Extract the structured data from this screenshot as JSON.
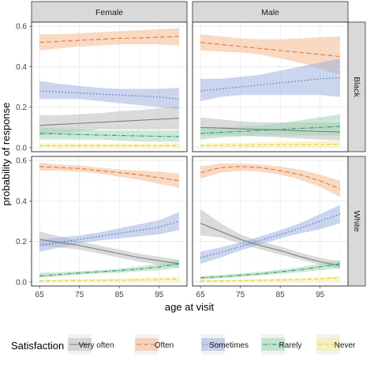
{
  "chart_data": {
    "type": "line",
    "xlabel": "age at visit",
    "ylabel": "probability of response",
    "xlim": [
      63,
      102
    ],
    "ylim": [
      -0.02,
      0.62
    ],
    "x_ticks": [
      65,
      75,
      85,
      95
    ],
    "y_ticks": [
      0.0,
      0.2,
      0.4,
      0.6
    ],
    "y_tick_labels": [
      "0.0",
      "0.2",
      "0.4",
      "0.6"
    ],
    "facet_columns": [
      "Female",
      "Male"
    ],
    "facet_rows": [
      "Black",
      "White"
    ],
    "legend": {
      "title": "Satisfaction",
      "position": "bottom",
      "entries": [
        "Very often",
        "Often",
        "Sometimes",
        "Rarely",
        "Never"
      ]
    },
    "series_style": {
      "Very often": {
        "color": "#7f7f7f",
        "fill": "#bdbdbd",
        "dash": ""
      },
      "Often": {
        "color": "#e2773f",
        "fill": "#f4b98f",
        "dash": "6,3"
      },
      "Sometimes": {
        "color": "#4a6fbf",
        "fill": "#9fb3e0",
        "dash": "1.5,2.5"
      },
      "Rarely": {
        "color": "#2e9a6a",
        "fill": "#9fd6b5",
        "dash": "6,2,1.5,2"
      },
      "Never": {
        "color": "#e8cf2e",
        "fill": "#f5ec9c",
        "dash": "5,3"
      }
    },
    "grid": true,
    "x": [
      65,
      70,
      75,
      80,
      85,
      90,
      95,
      100
    ],
    "panels": [
      {
        "col": "Female",
        "row": "Black",
        "series": [
          {
            "name": "Very often",
            "values": [
              0.11,
              0.115,
              0.12,
              0.125,
              0.13,
              0.135,
              0.14,
              0.145
            ],
            "lower": [
              0.06,
              0.07,
              0.08,
              0.09,
              0.09,
              0.09,
              0.09,
              0.09
            ],
            "upper": [
              0.16,
              0.16,
              0.165,
              0.17,
              0.18,
              0.185,
              0.195,
              0.205
            ]
          },
          {
            "name": "Often",
            "values": [
              0.52,
              0.525,
              0.53,
              0.535,
              0.54,
              0.542,
              0.545,
              0.55
            ],
            "lower": [
              0.48,
              0.49,
              0.5,
              0.505,
              0.51,
              0.51,
              0.51,
              0.505
            ],
            "upper": [
              0.56,
              0.56,
              0.565,
              0.57,
              0.575,
              0.58,
              0.585,
              0.59
            ]
          },
          {
            "name": "Sometimes",
            "values": [
              0.28,
              0.275,
              0.27,
              0.265,
              0.26,
              0.255,
              0.25,
              0.24
            ],
            "lower": [
              0.24,
              0.24,
              0.24,
              0.23,
              0.22,
              0.21,
              0.2,
              0.19
            ],
            "upper": [
              0.33,
              0.315,
              0.305,
              0.295,
              0.29,
              0.29,
              0.29,
              0.295
            ]
          },
          {
            "name": "Rarely",
            "values": [
              0.07,
              0.068,
              0.065,
              0.062,
              0.06,
              0.058,
              0.056,
              0.055
            ],
            "lower": [
              0.04,
              0.04,
              0.04,
              0.04,
              0.035,
              0.03,
              0.03,
              0.03
            ],
            "upper": [
              0.1,
              0.095,
              0.09,
              0.085,
              0.085,
              0.085,
              0.085,
              0.085
            ]
          },
          {
            "name": "Never",
            "values": [
              0.01,
              0.01,
              0.01,
              0.01,
              0.01,
              0.01,
              0.01,
              0.01
            ],
            "lower": [
              0.0,
              0.0,
              0.0,
              0.0,
              0.0,
              0.0,
              0.0,
              0.0
            ],
            "upper": [
              0.02,
              0.02,
              0.02,
              0.02,
              0.02,
              0.02,
              0.02,
              0.025
            ]
          }
        ]
      },
      {
        "col": "Male",
        "row": "Black",
        "series": [
          {
            "name": "Very often",
            "values": [
              0.1,
              0.097,
              0.093,
              0.09,
              0.087,
              0.083,
              0.08,
              0.078
            ],
            "lower": [
              0.06,
              0.06,
              0.06,
              0.055,
              0.05,
              0.045,
              0.04,
              0.035
            ],
            "upper": [
              0.15,
              0.14,
              0.13,
              0.125,
              0.125,
              0.125,
              0.125,
              0.125
            ]
          },
          {
            "name": "Often",
            "values": [
              0.52,
              0.51,
              0.5,
              0.49,
              0.48,
              0.47,
              0.46,
              0.45
            ],
            "lower": [
              0.48,
              0.475,
              0.47,
              0.46,
              0.44,
              0.42,
              0.39,
              0.36
            ],
            "upper": [
              0.56,
              0.55,
              0.54,
              0.535,
              0.535,
              0.54,
              0.545,
              0.55
            ]
          },
          {
            "name": "Sometimes",
            "values": [
              0.28,
              0.29,
              0.3,
              0.31,
              0.32,
              0.33,
              0.34,
              0.345
            ],
            "lower": [
              0.23,
              0.25,
              0.26,
              0.26,
              0.26,
              0.26,
              0.26,
              0.25
            ],
            "upper": [
              0.34,
              0.34,
              0.35,
              0.36,
              0.38,
              0.4,
              0.42,
              0.44
            ]
          },
          {
            "name": "Rarely",
            "values": [
              0.07,
              0.075,
              0.08,
              0.085,
              0.09,
              0.095,
              0.1,
              0.105
            ],
            "lower": [
              0.04,
              0.05,
              0.055,
              0.06,
              0.06,
              0.06,
              0.06,
              0.06
            ],
            "upper": [
              0.1,
              0.1,
              0.105,
              0.11,
              0.12,
              0.135,
              0.15,
              0.165
            ]
          },
          {
            "name": "Never",
            "values": [
              0.01,
              0.011,
              0.012,
              0.013,
              0.014,
              0.015,
              0.016,
              0.017
            ],
            "lower": [
              0.0,
              0.0,
              0.0,
              0.0,
              0.0,
              0.0,
              0.0,
              0.0
            ],
            "upper": [
              0.02,
              0.022,
              0.024,
              0.026,
              0.028,
              0.03,
              0.033,
              0.036
            ]
          }
        ]
      },
      {
        "col": "Female",
        "row": "White",
        "series": [
          {
            "name": "Very often",
            "values": [
              0.21,
              0.195,
              0.18,
              0.16,
              0.14,
              0.12,
              0.105,
              0.09
            ],
            "lower": [
              0.18,
              0.17,
              0.16,
              0.14,
              0.12,
              0.1,
              0.085,
              0.07
            ],
            "upper": [
              0.25,
              0.225,
              0.2,
              0.18,
              0.16,
              0.14,
              0.125,
              0.11
            ]
          },
          {
            "name": "Often",
            "values": [
              0.57,
              0.565,
              0.56,
              0.55,
              0.54,
              0.53,
              0.515,
              0.5
            ],
            "lower": [
              0.55,
              0.55,
              0.545,
              0.535,
              0.52,
              0.505,
              0.485,
              0.465
            ],
            "upper": [
              0.59,
              0.58,
              0.575,
              0.565,
              0.555,
              0.55,
              0.545,
              0.535
            ]
          },
          {
            "name": "Sometimes",
            "values": [
              0.18,
              0.195,
              0.21,
              0.225,
              0.24,
              0.255,
              0.27,
              0.3
            ],
            "lower": [
              0.15,
              0.17,
              0.19,
              0.205,
              0.215,
              0.225,
              0.235,
              0.255
            ],
            "upper": [
              0.21,
              0.22,
              0.23,
              0.245,
              0.265,
              0.285,
              0.305,
              0.345
            ]
          },
          {
            "name": "Rarely",
            "values": [
              0.03,
              0.037,
              0.044,
              0.05,
              0.056,
              0.064,
              0.074,
              0.09
            ],
            "lower": [
              0.02,
              0.028,
              0.036,
              0.042,
              0.046,
              0.052,
              0.058,
              0.07
            ],
            "upper": [
              0.045,
              0.048,
              0.053,
              0.058,
              0.066,
              0.076,
              0.09,
              0.11
            ]
          },
          {
            "name": "Never",
            "values": [
              0.005,
              0.006,
              0.007,
              0.008,
              0.009,
              0.01,
              0.012,
              0.015
            ],
            "lower": [
              0.0,
              0.0,
              0.0,
              0.0,
              0.0,
              0.0,
              0.0,
              0.0
            ],
            "upper": [
              0.012,
              0.013,
              0.014,
              0.015,
              0.017,
              0.019,
              0.022,
              0.026
            ]
          }
        ]
      },
      {
        "col": "Male",
        "row": "White",
        "series": [
          {
            "name": "Very often",
            "values": [
              0.29,
              0.25,
              0.21,
              0.18,
              0.155,
              0.125,
              0.1,
              0.08
            ],
            "lower": [
              0.23,
              0.22,
              0.19,
              0.16,
              0.135,
              0.11,
              0.085,
              0.065
            ],
            "upper": [
              0.36,
              0.29,
              0.235,
              0.2,
              0.175,
              0.145,
              0.12,
              0.1
            ]
          },
          {
            "name": "Often",
            "values": [
              0.54,
              0.565,
              0.57,
              0.565,
              0.55,
              0.53,
              0.5,
              0.46
            ],
            "lower": [
              0.51,
              0.54,
              0.55,
              0.545,
              0.53,
              0.505,
              0.47,
              0.42
            ],
            "upper": [
              0.57,
              0.585,
              0.585,
              0.58,
              0.57,
              0.555,
              0.53,
              0.5
            ]
          },
          {
            "name": "Sometimes",
            "values": [
              0.12,
              0.145,
              0.175,
              0.205,
              0.235,
              0.265,
              0.3,
              0.335
            ],
            "lower": [
              0.09,
              0.12,
              0.155,
              0.185,
              0.215,
              0.24,
              0.26,
              0.29
            ],
            "upper": [
              0.15,
              0.17,
              0.195,
              0.225,
              0.255,
              0.29,
              0.335,
              0.38
            ]
          },
          {
            "name": "Rarely",
            "values": [
              0.02,
              0.025,
              0.033,
              0.04,
              0.05,
              0.06,
              0.075,
              0.09
            ],
            "lower": [
              0.012,
              0.018,
              0.025,
              0.032,
              0.04,
              0.048,
              0.058,
              0.068
            ],
            "upper": [
              0.03,
              0.035,
              0.042,
              0.05,
              0.06,
              0.073,
              0.09,
              0.11
            ]
          },
          {
            "name": "Never",
            "values": [
              0.004,
              0.005,
              0.006,
              0.008,
              0.01,
              0.012,
              0.015,
              0.02
            ],
            "lower": [
              0.0,
              0.0,
              0.0,
              0.0,
              0.0,
              0.0,
              0.0,
              0.0
            ],
            "upper": [
              0.01,
              0.011,
              0.012,
              0.014,
              0.017,
              0.02,
              0.024,
              0.03
            ]
          }
        ]
      }
    ]
  }
}
